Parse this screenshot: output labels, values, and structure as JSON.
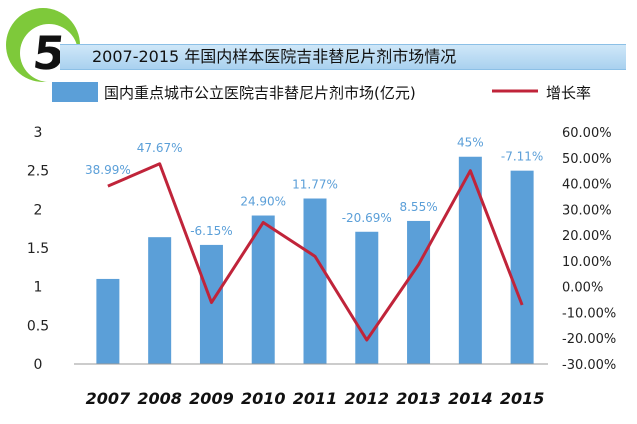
{
  "badge": {
    "number": "5"
  },
  "title": "2007-2015 年国内样本医院吉非替尼片剂市场情况",
  "chart_data": {
    "type": "bar",
    "categories": [
      "2007",
      "2008",
      "2009",
      "2010",
      "2011",
      "2012",
      "2013",
      "2014",
      "2015"
    ],
    "series": [
      {
        "name": "国内重点城市公立医院吉非替尼片剂市场(亿元)",
        "type": "bar",
        "axis": "left",
        "color": "#5b9fd8",
        "values": [
          1.1,
          1.64,
          1.54,
          1.92,
          2.14,
          1.71,
          1.85,
          2.68,
          2.5
        ]
      },
      {
        "name": "增长率",
        "type": "line",
        "axis": "right",
        "color": "#c0243a",
        "values": [
          38.99,
          47.67,
          -6.15,
          24.9,
          11.77,
          -20.69,
          8.55,
          45,
          -7.11
        ],
        "labels": [
          "38.99%",
          "47.67%",
          "-6.15%",
          "24.90%",
          "11.77%",
          "-20.69%",
          "8.55%",
          "45%",
          "-7.11%"
        ]
      }
    ],
    "y_left": {
      "min": 0,
      "max": 3,
      "ticks": [
        "0",
        "0.5",
        "1",
        "1.5",
        "2",
        "2.5",
        "3"
      ]
    },
    "y_right": {
      "min": -30,
      "max": 60,
      "ticks": [
        "-30.00%",
        "-20.00%",
        "-10.00%",
        "0.00%",
        "10.00%",
        "20.00%",
        "30.00%",
        "40.00%",
        "50.00%",
        "60.00%"
      ]
    },
    "legend_position": "top",
    "grid": false,
    "label_color": "#5b9fd8"
  }
}
